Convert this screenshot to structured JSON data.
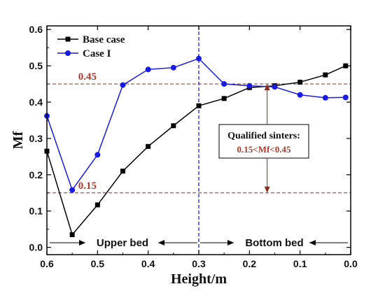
{
  "chart_data": {
    "type": "line",
    "xlabel": "Height/m",
    "ylabel": "Mf",
    "xlim": [
      0.6,
      0.0
    ],
    "ylim": [
      -0.02,
      0.61
    ],
    "x_reversed": true,
    "x_ticks": [
      "0.6",
      "0.5",
      "0.4",
      "0.3",
      "0.2",
      "0.1",
      "0.0"
    ],
    "y_ticks": [
      "0.0",
      "0.1",
      "0.2",
      "0.3",
      "0.4",
      "0.5",
      "0.6"
    ],
    "legend_position": "top-left",
    "series": [
      {
        "name": "Base case",
        "color": "#000000",
        "marker": "square",
        "x": [
          0.6,
          0.55,
          0.5,
          0.45,
          0.4,
          0.35,
          0.3,
          0.25,
          0.2,
          0.15,
          0.1,
          0.05,
          0.01
        ],
        "y": [
          0.265,
          0.035,
          0.117,
          0.21,
          0.278,
          0.335,
          0.39,
          0.41,
          0.44,
          0.445,
          0.455,
          0.475,
          0.5
        ]
      },
      {
        "name": "Case I",
        "color": "#1a1ae6",
        "marker": "circle",
        "x": [
          0.6,
          0.55,
          0.5,
          0.45,
          0.4,
          0.35,
          0.3,
          0.25,
          0.2,
          0.15,
          0.1,
          0.05,
          0.01
        ],
        "y": [
          0.362,
          0.158,
          0.255,
          0.447,
          0.49,
          0.495,
          0.52,
          0.45,
          0.445,
          0.442,
          0.42,
          0.412,
          0.413
        ]
      }
    ],
    "reference_lines": [
      {
        "value": 0.45,
        "label": "0.45",
        "color": "#8b2e1e"
      },
      {
        "value": 0.15,
        "label": "0.15",
        "color": "#8b2e1e"
      }
    ],
    "divider": {
      "x": 0.3,
      "color": "#1a1ae6"
    },
    "regions": [
      {
        "label": "Upper bed"
      },
      {
        "label": "Bottom bed"
      }
    ],
    "annotation": {
      "title": "Qualified sinters:",
      "condition": "0.15<Mf<0.45",
      "arrow_x": 0.165
    }
  }
}
